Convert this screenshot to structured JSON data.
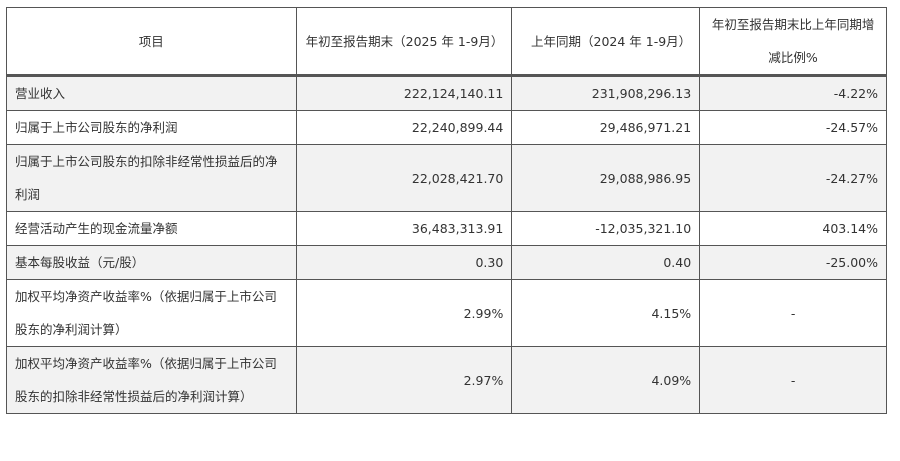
{
  "table": {
    "headers": [
      "项目",
      "年初至报告期末（2025 年 1-9月）",
      "上年同期（2024 年 1-9月）",
      "年初至报告期末比上年同期增减比例%"
    ],
    "rows": [
      [
        "营业收入",
        "222,124,140.11",
        "231,908,296.13",
        "-4.22%"
      ],
      [
        "归属于上市公司股东的净利润",
        "22,240,899.44",
        "29,486,971.21",
        "-24.57%"
      ],
      [
        "归属于上市公司股东的扣除非经常性损益后的净利润",
        "22,028,421.70",
        "29,088,986.95",
        "-24.27%"
      ],
      [
        "经营活动产生的现金流量净额",
        "36,483,313.91",
        "-12,035,321.10",
        "403.14%"
      ],
      [
        "基本每股收益（元/股）",
        "0.30",
        "0.40",
        "-25.00%"
      ],
      [
        "加权平均净资产收益率%（依据归属于上市公司股东的净利润计算）",
        "2.99%",
        "4.15%",
        "-"
      ],
      [
        "加权平均净资产收益率%（依据归属于上市公司股东的扣除非经常性损益后的净利润计算）",
        "2.97%",
        "4.09%",
        "-"
      ]
    ]
  }
}
